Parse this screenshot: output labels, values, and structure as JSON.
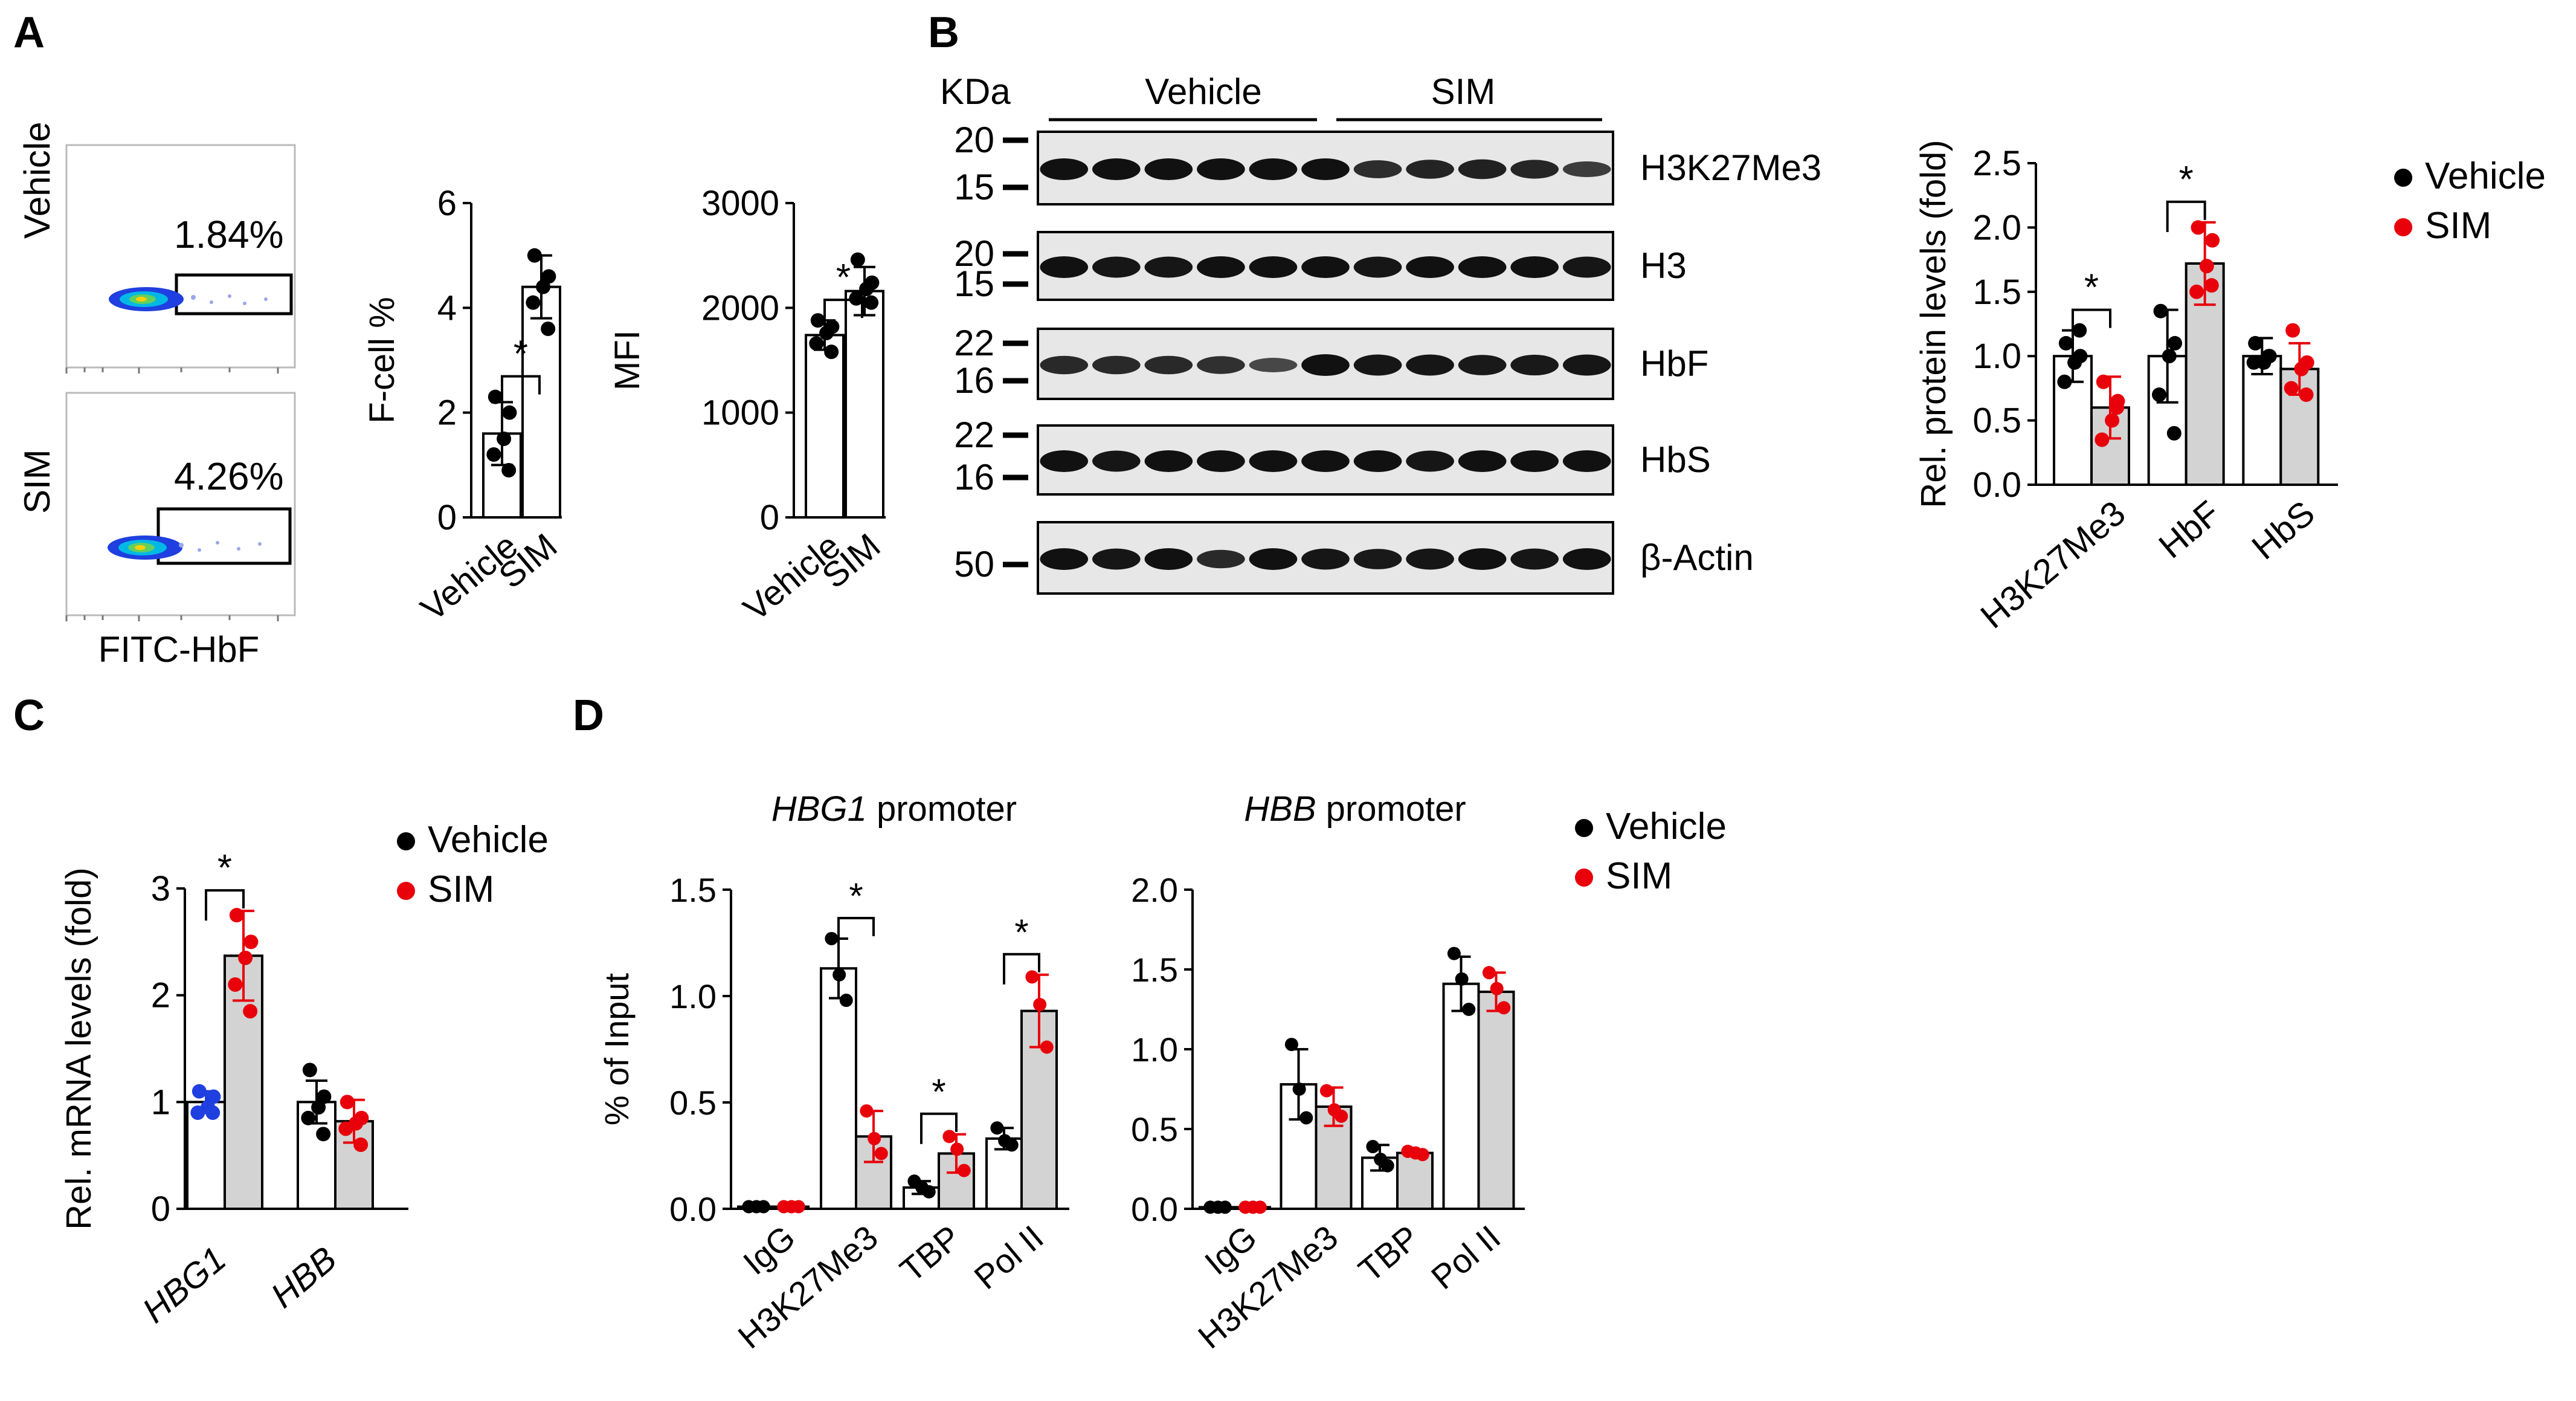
{
  "colors": {
    "vehicle": "#000000",
    "sim": "#e8000b",
    "hbg1_vehicle_dots": "#1f3fe0",
    "bar_sim": "#d3d3d3",
    "bar_vehicle": "#ffffff"
  },
  "panel_labels": {
    "a": "A",
    "b": "B",
    "c": "C",
    "d": "D"
  },
  "flow": {
    "conditions": [
      "Vehicle",
      "SIM"
    ],
    "gate_percents": [
      "1.84%",
      "4.26%"
    ],
    "xlabel": "FITC-HbF"
  },
  "western": {
    "unit_label": "KDa",
    "groups": [
      "Vehicle",
      "SIM"
    ],
    "bands": [
      {
        "name": "H3K27Me3",
        "markers": [
          "20",
          "15"
        ]
      },
      {
        "name": "H3",
        "markers": [
          "20",
          "15"
        ]
      },
      {
        "name": "HbF",
        "markers": [
          "22",
          "16"
        ]
      },
      {
        "name": "HbS",
        "markers": [
          "22",
          "16"
        ]
      },
      {
        "name": "β-Actin",
        "markers": [
          "50"
        ]
      }
    ]
  },
  "chart_data": [
    {
      "id": "fcell",
      "type": "bar",
      "title": "",
      "xlabel": "",
      "ylabel": "F-cell %",
      "categories": [
        "Vehicle",
        "SIM"
      ],
      "values": [
        1.6,
        4.4
      ],
      "errors": [
        0.6,
        0.6
      ],
      "points": [
        [
          2.3,
          2.0,
          1.5,
          1.2,
          0.9
        ],
        [
          5.0,
          4.6,
          4.4,
          4.1,
          3.6
        ]
      ],
      "ylim": [
        0,
        6
      ],
      "yticks": [
        "0",
        "2",
        "4",
        "6"
      ],
      "significance": [
        "*"
      ]
    },
    {
      "id": "mfi",
      "type": "bar",
      "title": "",
      "xlabel": "",
      "ylabel": "MFI",
      "categories": [
        "Vehicle",
        "SIM"
      ],
      "values": [
        1740,
        2160
      ],
      "errors": [
        140,
        230
      ],
      "points": [
        [
          1880,
          1820,
          1760,
          1660,
          1580
        ],
        [
          2460,
          2240,
          2180,
          2090,
          2050
        ]
      ],
      "ylim": [
        0,
        3000
      ],
      "yticks": [
        "0",
        "1000",
        "2000",
        "3000"
      ],
      "significance": [
        "*"
      ]
    },
    {
      "id": "protein",
      "type": "bar",
      "ylabel": "Rel. protein levels (fold)",
      "categories": [
        "H3K27Me3",
        "HbF",
        "HbS"
      ],
      "series": [
        {
          "name": "Vehicle",
          "values": [
            1.0,
            1.0,
            1.0
          ],
          "errors": [
            0.2,
            0.36,
            0.14
          ],
          "points": [
            [
              1.1,
              1.0,
              0.95,
              0.8,
              1.2
            ],
            [
              1.35,
              1.1,
              1.0,
              0.7,
              0.4
            ],
            [
              1.1,
              1.0,
              0.95,
              0.95,
              1.0
            ]
          ]
        },
        {
          "name": "SIM",
          "values": [
            0.6,
            1.72,
            0.9
          ],
          "errors": [
            0.24,
            0.32,
            0.2
          ],
          "points": [
            [
              0.8,
              0.65,
              0.5,
              0.35,
              0.6
            ],
            [
              2.0,
              1.9,
              1.7,
              1.5,
              1.55
            ],
            [
              1.2,
              0.95,
              0.9,
              0.75,
              0.7
            ]
          ]
        }
      ],
      "legend": [
        "Vehicle",
        "SIM"
      ],
      "ylim": [
        0,
        2.5
      ],
      "yticks": [
        "0.0",
        "0.5",
        "1.0",
        "1.5",
        "2.0",
        "2.5"
      ],
      "significance": [
        "*",
        "*"
      ]
    },
    {
      "id": "mrna",
      "type": "bar",
      "ylabel": "Rel. mRNA levels (fold)",
      "categories": [
        "HBG1",
        "HBB"
      ],
      "series": [
        {
          "name": "Vehicle",
          "values": [
            1.0,
            1.0
          ],
          "errors": [
            0.1,
            0.2
          ],
          "points": [
            [
              1.1,
              1.05,
              0.95,
              0.9,
              0.9
            ],
            [
              1.3,
              1.05,
              0.95,
              0.85,
              0.7
            ]
          ]
        },
        {
          "name": "SIM",
          "values": [
            2.37,
            0.82
          ],
          "errors": [
            0.42,
            0.2
          ],
          "points": [
            [
              2.75,
              2.5,
              2.35,
              2.1,
              1.85
            ],
            [
              1.0,
              0.85,
              0.8,
              0.75,
              0.6
            ]
          ]
        }
      ],
      "legend": [
        "Vehicle",
        "SIM"
      ],
      "ylim": [
        0,
        3
      ],
      "yticks": [
        "0",
        "1",
        "2",
        "3"
      ],
      "significance": [
        "*"
      ]
    },
    {
      "id": "hbg1",
      "type": "bar",
      "title": "HBG1 promoter",
      "ylabel": "% of Input",
      "categories": [
        "IgG",
        "H3K27Me3",
        "TBP",
        "Pol II"
      ],
      "series": [
        {
          "name": "Vehicle",
          "values": [
            0.01,
            1.13,
            0.1,
            0.33
          ],
          "errors": [
            0.01,
            0.14,
            0.03,
            0.05
          ],
          "points": [
            [
              0.01,
              0.01,
              0.01
            ],
            [
              1.27,
              1.1,
              0.98
            ],
            [
              0.13,
              0.1,
              0.08
            ],
            [
              0.38,
              0.32,
              0.3
            ]
          ]
        },
        {
          "name": "SIM",
          "values": [
            0.01,
            0.34,
            0.26,
            0.93
          ],
          "errors": [
            0.01,
            0.12,
            0.09,
            0.17
          ],
          "points": [
            [
              0.01,
              0.01,
              0.01
            ],
            [
              0.46,
              0.33,
              0.26
            ],
            [
              0.34,
              0.28,
              0.18
            ],
            [
              1.09,
              0.96,
              0.76
            ]
          ]
        }
      ],
      "legend": [
        "Vehicle",
        "SIM"
      ],
      "ylim": [
        0,
        1.5
      ],
      "yticks": [
        "0.0",
        "0.5",
        "1.0",
        "1.5"
      ],
      "significance": [
        "*",
        "*",
        "*"
      ]
    },
    {
      "id": "hbb",
      "type": "bar",
      "title": "HBB promoter",
      "ylabel": "",
      "categories": [
        "IgG",
        "H3K27Me3",
        "TBP",
        "Pol II"
      ],
      "series": [
        {
          "name": "Vehicle",
          "values": [
            0.01,
            0.78,
            0.32,
            1.41
          ],
          "errors": [
            0.01,
            0.22,
            0.08,
            0.17
          ],
          "points": [
            [
              0.01,
              0.01,
              0.01
            ],
            [
              1.03,
              0.75,
              0.57
            ],
            [
              0.39,
              0.31,
              0.27
            ],
            [
              1.6,
              1.44,
              1.25
            ]
          ]
        },
        {
          "name": "SIM",
          "values": [
            0.01,
            0.64,
            0.35,
            1.36
          ],
          "errors": [
            0.01,
            0.12,
            0.02,
            0.12
          ],
          "points": [
            [
              0.01,
              0.01,
              0.01
            ],
            [
              0.74,
              0.62,
              0.58
            ],
            [
              0.36,
              0.35,
              0.34
            ],
            [
              1.48,
              1.38,
              1.26
            ]
          ]
        }
      ],
      "ylim": [
        0,
        2.0
      ],
      "yticks": [
        "0.0",
        "0.5",
        "1.0",
        "1.5",
        "2.0"
      ],
      "significance": []
    }
  ]
}
